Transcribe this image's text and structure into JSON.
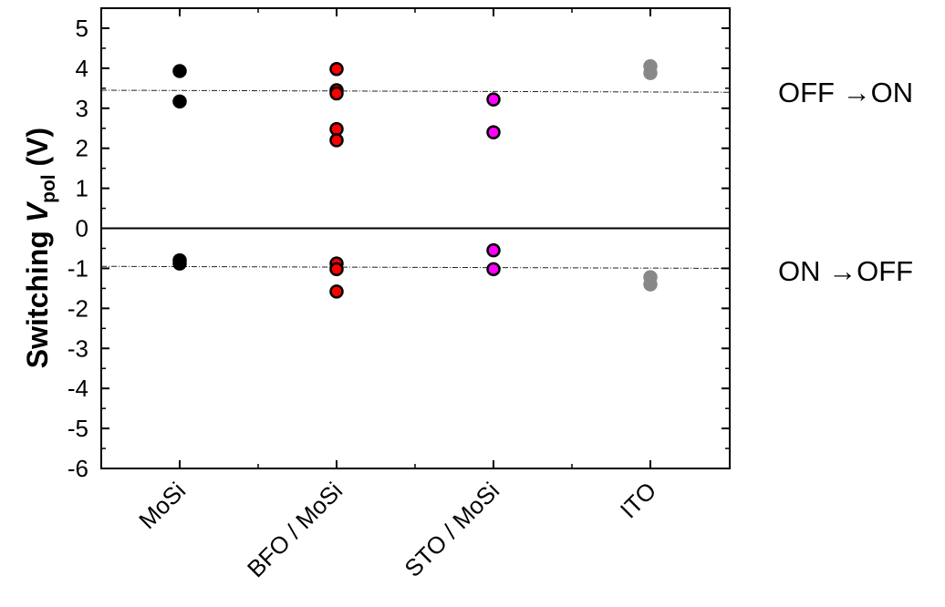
{
  "chart_data": {
    "type": "scatter",
    "ylabel": {
      "prefix": "Switching ",
      "italic": "V",
      "subscript": "pol",
      "suffix": " (V)"
    },
    "categories": [
      "MoSi",
      "BFO / MoSi",
      "STO / MoSi",
      "ITO"
    ],
    "ylim": [
      -6,
      5.5
    ],
    "yticks": [
      5,
      4,
      3,
      2,
      1,
      0,
      -1,
      -2,
      -3,
      -4,
      -5,
      -6
    ],
    "zero_line": 0,
    "reference_lines": [
      {
        "y_start": 3.45,
        "y_end": 3.4
      },
      {
        "y_start": -0.95,
        "y_end": -1.0
      }
    ],
    "series": [
      {
        "category": "MoSi",
        "fill": "#000000",
        "stroke": "#000000",
        "values": [
          3.93,
          3.17,
          -0.8,
          -0.88
        ]
      },
      {
        "category": "BFO / MoSi",
        "fill": "#ff0000",
        "stroke": "#000000",
        "values": [
          3.98,
          3.45,
          3.37,
          2.48,
          2.2,
          -0.88,
          -1.02,
          -1.58
        ]
      },
      {
        "category": "STO / MoSi",
        "fill": "#ff00ff",
        "stroke": "#000000",
        "values": [
          3.22,
          2.4,
          -0.55,
          -1.02
        ]
      },
      {
        "category": "ITO",
        "fill": "#888888",
        "stroke": "#888888",
        "values": [
          4.05,
          3.88,
          -1.22,
          -1.4
        ]
      }
    ],
    "annotations": [
      "OFF →ON",
      "ON →OFF"
    ]
  }
}
